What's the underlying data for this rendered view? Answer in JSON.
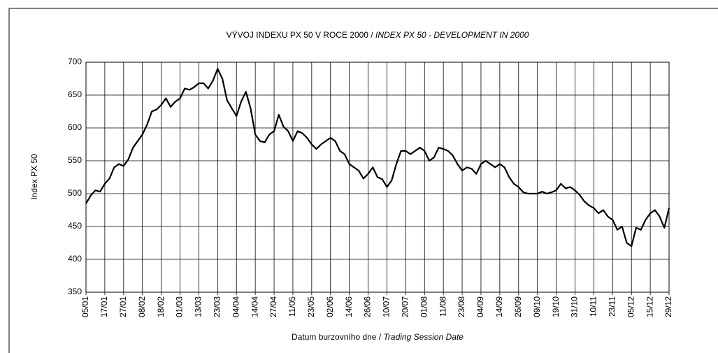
{
  "chart_data": {
    "type": "line",
    "title": "VÝVOJ INDEXU PX 50 V ROCE 2000 /",
    "subtitle": "INDEX PX 50  - DEVELOPMENT IN 2000",
    "xlabel": "Datum burzovního dne /",
    "xlabel_en": "Trading Session Date",
    "ylabel": "Index PX 50",
    "categories": [
      "05/01",
      null,
      null,
      null,
      "17/01",
      null,
      null,
      null,
      "27/01",
      null,
      null,
      null,
      "08/02",
      null,
      null,
      null,
      "18/02",
      null,
      null,
      null,
      "01/03",
      null,
      null,
      null,
      "13/03",
      null,
      null,
      null,
      "23/03",
      null,
      null,
      null,
      "04/04",
      null,
      null,
      null,
      "14/04",
      null,
      null,
      null,
      "27/04",
      null,
      null,
      null,
      "11/05",
      null,
      null,
      null,
      "23/05",
      null,
      null,
      null,
      "02/06",
      null,
      null,
      null,
      "14/06",
      null,
      null,
      null,
      "26/06",
      null,
      null,
      null,
      "10/07",
      null,
      null,
      null,
      "20/07",
      null,
      null,
      null,
      "01/08",
      null,
      null,
      null,
      "11/08",
      null,
      null,
      null,
      "23/08",
      null,
      null,
      null,
      "04/09",
      null,
      null,
      null,
      "14/09",
      null,
      null,
      null,
      "26/09",
      null,
      null,
      null,
      "09/10",
      null,
      null,
      null,
      "19/10",
      null,
      null,
      null,
      "31/10",
      null,
      null,
      null,
      "10/11",
      null,
      null,
      null,
      "23/11",
      null,
      null,
      null,
      "05/12",
      null,
      null,
      null,
      "15/12",
      null,
      null,
      null,
      "29/12"
    ],
    "values": [
      485,
      497,
      505,
      503,
      515,
      523,
      540,
      545,
      542,
      552,
      570,
      580,
      590,
      605,
      625,
      628,
      635,
      645,
      632,
      640,
      645,
      660,
      658,
      662,
      668,
      668,
      660,
      672,
      690,
      675,
      642,
      630,
      618,
      640,
      655,
      630,
      590,
      580,
      578,
      590,
      595,
      620,
      602,
      595,
      580,
      595,
      592,
      585,
      575,
      568,
      575,
      580,
      585,
      580,
      565,
      560,
      545,
      540,
      535,
      523,
      530,
      540,
      525,
      522,
      510,
      520,
      545,
      565,
      565,
      560,
      565,
      570,
      565,
      550,
      555,
      570,
      568,
      565,
      558,
      545,
      535,
      540,
      538,
      530,
      545,
      550,
      545,
      540,
      545,
      540,
      525,
      515,
      510,
      502,
      500,
      500,
      500,
      503,
      500,
      502,
      505,
      515,
      508,
      510,
      505,
      498,
      488,
      482,
      478,
      470,
      475,
      465,
      460,
      445,
      450,
      425,
      420,
      448,
      445,
      460,
      470,
      475,
      465,
      448,
      478
    ],
    "color": "#000000",
    "ylim": [
      350,
      700
    ],
    "yticks": [
      350,
      400,
      450,
      500,
      550,
      600,
      650,
      700
    ],
    "grid": true
  }
}
